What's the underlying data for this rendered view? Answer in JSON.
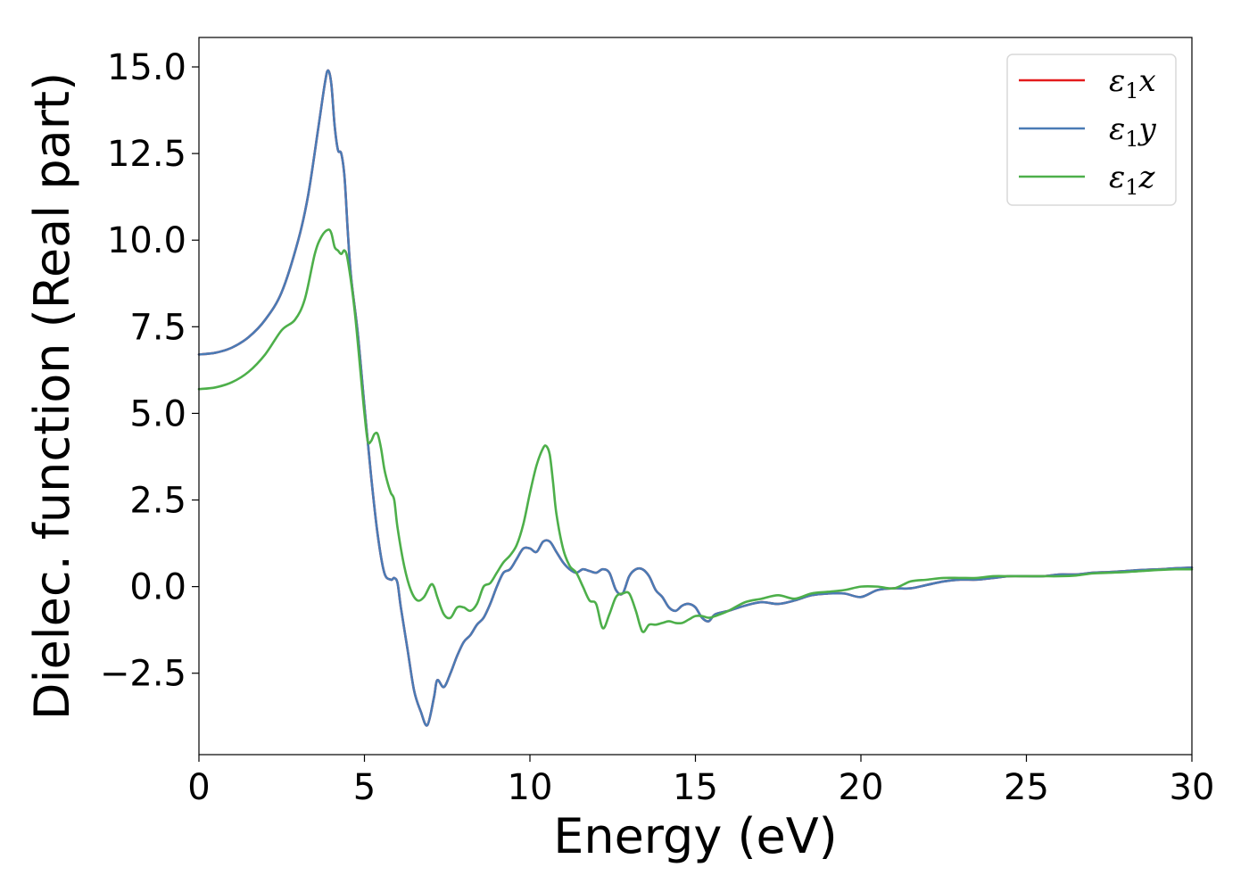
{
  "chart_data": {
    "type": "line",
    "title": "",
    "xlabel": "Energy (eV)",
    "ylabel": "Dielec. function (Real part)",
    "xlim": [
      0,
      30
    ],
    "ylim": [
      -4.85,
      15.85
    ],
    "xticks": [
      0,
      5,
      10,
      15,
      20,
      25,
      30
    ],
    "xtick_labels": [
      "0",
      "5",
      "10",
      "15",
      "20",
      "25",
      "30"
    ],
    "yticks": [
      -2.5,
      0,
      2.5,
      5,
      7.5,
      10,
      12.5,
      15
    ],
    "ytick_labels": [
      "−2.5",
      "0.0",
      "2.5",
      "5.0",
      "7.5",
      "10.0",
      "12.5",
      "15.0"
    ],
    "grid": false,
    "legend_position": "top-right",
    "series": [
      {
        "name": "ε1x",
        "label_base": "ε",
        "label_sub": "1",
        "label_tail": "x",
        "color": "#e41a1c",
        "x": [
          0,
          0.5,
          1,
          1.5,
          2,
          2.5,
          3,
          3.3,
          3.6,
          3.8,
          3.9,
          4.0,
          4.1,
          4.2,
          4.3,
          4.4,
          4.5,
          4.6,
          4.8,
          5.0,
          5.2,
          5.4,
          5.6,
          5.8,
          5.9,
          6.0,
          6.1,
          6.3,
          6.5,
          6.7,
          6.9,
          7.1,
          7.2,
          7.4,
          7.6,
          7.8,
          8.0,
          8.2,
          8.4,
          8.6,
          8.8,
          9.0,
          9.2,
          9.4,
          9.6,
          9.8,
          10.0,
          10.2,
          10.4,
          10.6,
          10.8,
          11.0,
          11.2,
          11.4,
          11.6,
          11.8,
          12.0,
          12.2,
          12.4,
          12.6,
          12.8,
          13.0,
          13.2,
          13.4,
          13.6,
          13.8,
          14.0,
          14.2,
          14.4,
          14.6,
          14.8,
          15.0,
          15.2,
          15.4,
          15.6,
          16.0,
          16.5,
          17.0,
          17.5,
          18.0,
          18.5,
          19.0,
          19.5,
          20.0,
          20.5,
          21.0,
          21.5,
          22.0,
          22.5,
          23.0,
          23.5,
          24.0,
          24.5,
          25.0,
          25.5,
          26.0,
          26.5,
          27.0,
          27.5,
          28.0,
          28.5,
          29.0,
          29.5,
          30.0
        ],
        "y": [
          6.7,
          6.75,
          6.9,
          7.2,
          7.7,
          8.5,
          10.0,
          11.3,
          13.2,
          14.5,
          14.9,
          14.5,
          13.3,
          12.6,
          12.5,
          11.8,
          10.2,
          8.9,
          7.3,
          5.2,
          3.2,
          1.5,
          0.4,
          0.2,
          0.25,
          0.1,
          -0.6,
          -1.8,
          -3.0,
          -3.6,
          -4.0,
          -3.2,
          -2.7,
          -2.9,
          -2.5,
          -2.0,
          -1.6,
          -1.4,
          -1.1,
          -0.9,
          -0.5,
          0.0,
          0.4,
          0.5,
          0.8,
          1.1,
          1.1,
          1.0,
          1.3,
          1.3,
          1.0,
          0.7,
          0.5,
          0.4,
          0.5,
          0.45,
          0.4,
          0.5,
          0.4,
          -0.1,
          -0.2,
          0.3,
          0.5,
          0.5,
          0.3,
          -0.1,
          -0.3,
          -0.6,
          -0.7,
          -0.55,
          -0.5,
          -0.6,
          -0.9,
          -1.0,
          -0.8,
          -0.7,
          -0.55,
          -0.45,
          -0.5,
          -0.4,
          -0.25,
          -0.2,
          -0.2,
          -0.3,
          -0.1,
          -0.05,
          -0.05,
          0.05,
          0.15,
          0.2,
          0.2,
          0.25,
          0.3,
          0.3,
          0.3,
          0.35,
          0.35,
          0.4,
          0.42,
          0.45,
          0.48,
          0.5,
          0.53,
          0.55
        ]
      },
      {
        "name": "ε1y",
        "label_base": "ε",
        "label_sub": "1",
        "label_tail": "y",
        "color": "#4a7bb5",
        "x": [
          0,
          0.5,
          1,
          1.5,
          2,
          2.5,
          3,
          3.3,
          3.6,
          3.8,
          3.9,
          4.0,
          4.1,
          4.2,
          4.3,
          4.4,
          4.5,
          4.6,
          4.8,
          5.0,
          5.2,
          5.4,
          5.6,
          5.8,
          5.9,
          6.0,
          6.1,
          6.3,
          6.5,
          6.7,
          6.9,
          7.1,
          7.2,
          7.4,
          7.6,
          7.8,
          8.0,
          8.2,
          8.4,
          8.6,
          8.8,
          9.0,
          9.2,
          9.4,
          9.6,
          9.8,
          10.0,
          10.2,
          10.4,
          10.6,
          10.8,
          11.0,
          11.2,
          11.4,
          11.6,
          11.8,
          12.0,
          12.2,
          12.4,
          12.6,
          12.8,
          13.0,
          13.2,
          13.4,
          13.6,
          13.8,
          14.0,
          14.2,
          14.4,
          14.6,
          14.8,
          15.0,
          15.2,
          15.4,
          15.6,
          16.0,
          16.5,
          17.0,
          17.5,
          18.0,
          18.5,
          19.0,
          19.5,
          20.0,
          20.5,
          21.0,
          21.5,
          22.0,
          22.5,
          23.0,
          23.5,
          24.0,
          24.5,
          25.0,
          25.5,
          26.0,
          26.5,
          27.0,
          27.5,
          28.0,
          28.5,
          29.0,
          29.5,
          30.0
        ],
        "y": [
          6.7,
          6.75,
          6.9,
          7.2,
          7.7,
          8.5,
          10.0,
          11.3,
          13.2,
          14.5,
          14.9,
          14.5,
          13.3,
          12.6,
          12.5,
          11.8,
          10.2,
          8.9,
          7.3,
          5.2,
          3.2,
          1.5,
          0.4,
          0.2,
          0.25,
          0.1,
          -0.6,
          -1.8,
          -3.0,
          -3.6,
          -4.0,
          -3.2,
          -2.7,
          -2.9,
          -2.5,
          -2.0,
          -1.6,
          -1.4,
          -1.1,
          -0.9,
          -0.5,
          0.0,
          0.4,
          0.5,
          0.8,
          1.1,
          1.1,
          1.0,
          1.3,
          1.3,
          1.0,
          0.7,
          0.5,
          0.4,
          0.5,
          0.45,
          0.4,
          0.5,
          0.4,
          -0.1,
          -0.2,
          0.3,
          0.5,
          0.5,
          0.3,
          -0.1,
          -0.3,
          -0.6,
          -0.7,
          -0.55,
          -0.5,
          -0.6,
          -0.9,
          -1.0,
          -0.8,
          -0.7,
          -0.55,
          -0.45,
          -0.5,
          -0.4,
          -0.25,
          -0.2,
          -0.2,
          -0.3,
          -0.1,
          -0.05,
          -0.05,
          0.05,
          0.15,
          0.2,
          0.2,
          0.25,
          0.3,
          0.3,
          0.3,
          0.35,
          0.35,
          0.4,
          0.42,
          0.45,
          0.48,
          0.5,
          0.53,
          0.55
        ]
      },
      {
        "name": "ε1z",
        "label_base": "ε",
        "label_sub": "1",
        "label_tail": "z",
        "color": "#4daf4a",
        "x": [
          0,
          0.5,
          1,
          1.5,
          2,
          2.5,
          2.9,
          3.2,
          3.5,
          3.7,
          3.9,
          4.0,
          4.1,
          4.2,
          4.3,
          4.4,
          4.5,
          4.7,
          4.9,
          5.0,
          5.1,
          5.2,
          5.3,
          5.4,
          5.5,
          5.6,
          5.7,
          5.8,
          5.9,
          6.0,
          6.2,
          6.4,
          6.6,
          6.8,
          7.0,
          7.1,
          7.2,
          7.4,
          7.6,
          7.8,
          8.0,
          8.2,
          8.4,
          8.6,
          8.8,
          9.0,
          9.2,
          9.4,
          9.6,
          9.8,
          10.0,
          10.2,
          10.4,
          10.5,
          10.6,
          10.7,
          10.8,
          11.0,
          11.2,
          11.4,
          11.6,
          11.8,
          12.0,
          12.2,
          12.4,
          12.6,
          12.8,
          13.0,
          13.2,
          13.4,
          13.6,
          13.8,
          14.0,
          14.2,
          14.4,
          14.6,
          14.8,
          15.0,
          15.2,
          15.4,
          15.6,
          16.0,
          16.5,
          17.0,
          17.5,
          18.0,
          18.5,
          19.0,
          19.5,
          20.0,
          20.5,
          21.0,
          21.5,
          22.0,
          22.5,
          23.0,
          23.5,
          24.0,
          24.5,
          25.0,
          25.5,
          26.0,
          26.5,
          27.0,
          27.5,
          28.0,
          28.5,
          29.0,
          29.5,
          30.0
        ],
        "y": [
          5.7,
          5.75,
          5.9,
          6.2,
          6.7,
          7.4,
          7.7,
          8.3,
          9.6,
          10.1,
          10.3,
          10.2,
          9.8,
          9.7,
          9.6,
          9.7,
          9.4,
          8.0,
          6.0,
          5.0,
          4.2,
          4.2,
          4.4,
          4.4,
          4.0,
          3.4,
          3.0,
          2.7,
          2.5,
          1.7,
          0.6,
          -0.1,
          -0.4,
          -0.3,
          0.05,
          0.0,
          -0.3,
          -0.8,
          -0.9,
          -0.6,
          -0.6,
          -0.7,
          -0.5,
          0.0,
          0.1,
          0.4,
          0.7,
          0.9,
          1.2,
          1.8,
          2.7,
          3.5,
          4.0,
          4.05,
          3.8,
          3.0,
          2.1,
          1.1,
          0.6,
          0.4,
          0.0,
          -0.4,
          -0.5,
          -1.2,
          -0.8,
          -0.3,
          -0.2,
          -0.2,
          -0.7,
          -1.3,
          -1.1,
          -1.1,
          -1.05,
          -1.0,
          -1.05,
          -1.05,
          -0.95,
          -0.85,
          -0.85,
          -0.9,
          -0.85,
          -0.7,
          -0.45,
          -0.35,
          -0.25,
          -0.35,
          -0.2,
          -0.15,
          -0.1,
          0.0,
          0.0,
          -0.05,
          0.15,
          0.2,
          0.25,
          0.25,
          0.25,
          0.3,
          0.3,
          0.3,
          0.3,
          0.3,
          0.32,
          0.38,
          0.4,
          0.42,
          0.45,
          0.48,
          0.5,
          0.5
        ]
      }
    ]
  }
}
